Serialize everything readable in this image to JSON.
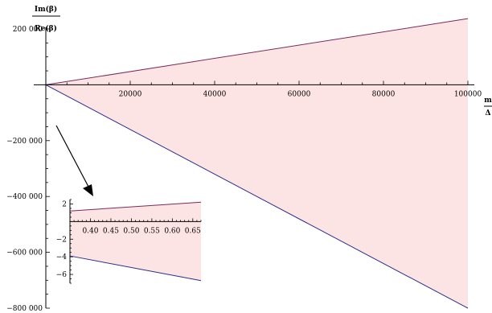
{
  "chart_data": [
    {
      "type": "area",
      "ylabel_top": "Im(β)",
      "ylabel_bottom": "Re(β)",
      "xlabel_top": "m",
      "xlabel_bottom": "Δ",
      "xlim": [
        0,
        100000
      ],
      "ylim": [
        -800000,
        200000
      ],
      "x_ticks": [
        20000,
        40000,
        60000,
        80000,
        100000
      ],
      "x_tick_labels": [
        "20000",
        "40000",
        "60000",
        "80000",
        "100000"
      ],
      "y_ticks": [
        200000,
        -200000,
        -400000,
        -600000,
        -800000
      ],
      "y_tick_labels": [
        "200 000",
        "−200 000",
        "−400 000",
        "−600 000",
        "−800 000"
      ],
      "series": [
        {
          "x": [
            0,
            100000
          ],
          "y": [
            0,
            237000
          ],
          "color": "#7b2a5a"
        },
        {
          "x": [
            0,
            100000
          ],
          "y": [
            0,
            -800000
          ],
          "color": "#2b2f8a"
        }
      ],
      "fill_color": "#fde4e4",
      "grid": false
    },
    {
      "type": "area",
      "role": "inset",
      "xlim": [
        0.35,
        0.67
      ],
      "ylim": [
        -7,
        2.5
      ],
      "x_ticks": [
        0.4,
        0.45,
        0.5,
        0.55,
        0.6,
        0.65
      ],
      "x_tick_labels": [
        "0.40",
        "0.45",
        "0.50",
        "0.55",
        "0.60",
        "0.65"
      ],
      "y_ticks": [
        2,
        -2,
        -4,
        -6
      ],
      "y_tick_labels": [
        "2",
        "−2",
        "−4",
        "−6"
      ],
      "series": [
        {
          "x": [
            0.35,
            0.67
          ],
          "y": [
            1.2,
            2.2
          ],
          "color": "#7b2a5a"
        },
        {
          "x": [
            0.35,
            0.67
          ],
          "y": [
            -3.9,
            -6.7
          ],
          "color": "#2b2f8a"
        }
      ],
      "fill_color": "#fde4e4"
    }
  ]
}
